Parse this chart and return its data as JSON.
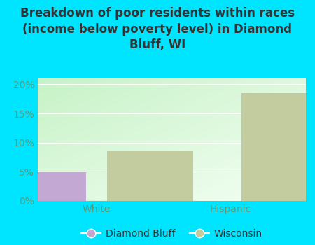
{
  "title": "Breakdown of poor residents within races\n(income below poverty level) in Diamond\nBluff, WI",
  "categories": [
    "White",
    "Hispanic"
  ],
  "diamond_bluff_values": [
    4.9,
    0
  ],
  "wisconsin_values": [
    8.5,
    18.5
  ],
  "diamond_bluff_color": "#c4a8d4",
  "wisconsin_color": "#c2cc9e",
  "background_color": "#00e5ff",
  "plot_bg_top_left": "#b8ddb0",
  "plot_bg_bottom_right": "#f0f8f0",
  "title_color": "#333333",
  "tick_label_color": "#5a9a7a",
  "ylim": [
    0,
    21
  ],
  "yticks": [
    0,
    5,
    10,
    15,
    20
  ],
  "bar_width": 0.32,
  "legend_labels": [
    "Diamond Bluff",
    "Wisconsin"
  ],
  "title_fontsize": 12,
  "tick_fontsize": 10,
  "group_positions": [
    0.25,
    0.75
  ],
  "figsize": [
    4.5,
    3.5
  ],
  "dpi": 100
}
